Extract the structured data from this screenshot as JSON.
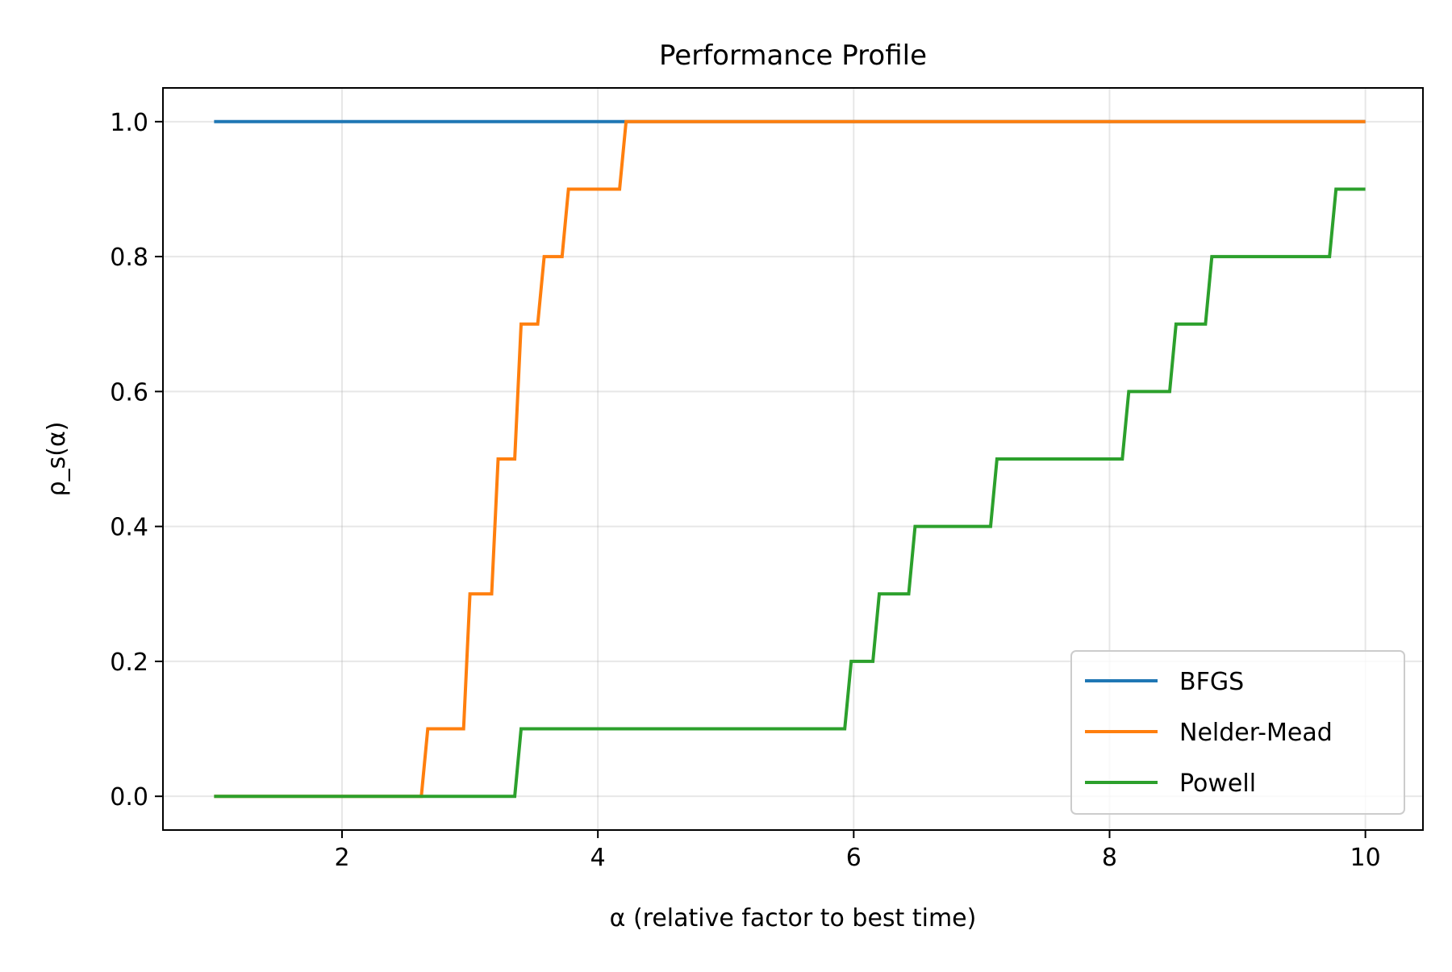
{
  "chart_data": {
    "type": "line",
    "title": "Performance Profile",
    "xlabel": "α (relative factor to best time)",
    "ylabel": "ρ_s(α)",
    "xlim": [
      0.6,
      10.45
    ],
    "ylim": [
      -0.05,
      1.05
    ],
    "xticks": [
      2,
      4,
      6,
      8,
      10
    ],
    "xtick_labels": [
      "2",
      "4",
      "6",
      "8",
      "10"
    ],
    "yticks": [
      0.0,
      0.2,
      0.4,
      0.6,
      0.8,
      1.0
    ],
    "ytick_labels": [
      "0.0",
      "0.2",
      "0.4",
      "0.6",
      "0.8",
      "1.0"
    ],
    "grid": true,
    "legend_position": "lower-right",
    "series": [
      {
        "name": "BFGS",
        "color": "#1f77b4",
        "x": [
          1.0,
          10.0
        ],
        "y": [
          1.0,
          1.0
        ]
      },
      {
        "name": "Nelder-Mead",
        "color": "#ff7f0e",
        "x": [
          1.0,
          2.62,
          2.67,
          2.95,
          3.0,
          3.17,
          3.22,
          3.35,
          3.4,
          3.53,
          3.58,
          3.72,
          3.77,
          4.17,
          4.22,
          10.0
        ],
        "y": [
          0.0,
          0.0,
          0.1,
          0.1,
          0.3,
          0.3,
          0.5,
          0.5,
          0.7,
          0.7,
          0.8,
          0.8,
          0.9,
          0.9,
          1.0,
          1.0
        ]
      },
      {
        "name": "Powell",
        "color": "#2ca02c",
        "x": [
          1.0,
          3.35,
          3.4,
          5.93,
          5.98,
          6.15,
          6.2,
          6.43,
          6.48,
          7.07,
          7.12,
          8.1,
          8.15,
          8.47,
          8.52,
          8.75,
          8.8,
          9.72,
          9.77,
          10.0
        ],
        "y": [
          0.0,
          0.0,
          0.1,
          0.1,
          0.2,
          0.2,
          0.3,
          0.3,
          0.4,
          0.4,
          0.5,
          0.5,
          0.6,
          0.6,
          0.7,
          0.7,
          0.8,
          0.8,
          0.9,
          0.9
        ]
      }
    ]
  }
}
